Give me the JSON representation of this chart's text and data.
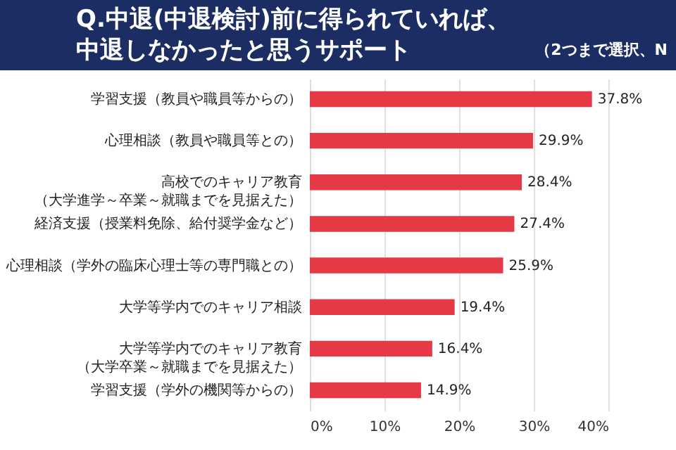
{
  "chart_data": {
    "type": "bar",
    "orientation": "horizontal",
    "title": "Q.中退(中退検討)前に得られていれば、中退しなかったと思うサポート",
    "subtitle": "（2つまで選択、N",
    "categories": [
      "学習支援（教員や職員等からの）",
      "心理相談（教員や職員等との）",
      "高校でのキャリア教育（大学進学～卒業～就職までを見据えた）",
      "経済支援（授業料免除、給付奨学金など）",
      "心理相談（学外の臨床心理士等の専門職との）",
      "大学等学内でのキャリア相談",
      "大学等学内でのキャリア教育（大学卒業～就職までを見据えた）",
      "学習支援（学外の機関等からの）"
    ],
    "values": [
      37.8,
      29.9,
      28.4,
      27.4,
      25.9,
      19.4,
      16.4,
      14.9
    ],
    "value_labels": [
      "37.8%",
      "29.9%",
      "28.4%",
      "27.4%",
      "25.9%",
      "19.4%",
      "16.4%",
      "14.9%"
    ],
    "color": "#e63946",
    "xlim": [
      0,
      40
    ],
    "xticks": [
      {
        "value": 0,
        "label": "0%"
      },
      {
        "value": 10,
        "label": "10%"
      },
      {
        "value": 20,
        "label": "20%"
      },
      {
        "value": 30,
        "label": "30%"
      },
      {
        "value": 40,
        "label": "40%"
      }
    ],
    "grid": "x"
  }
}
